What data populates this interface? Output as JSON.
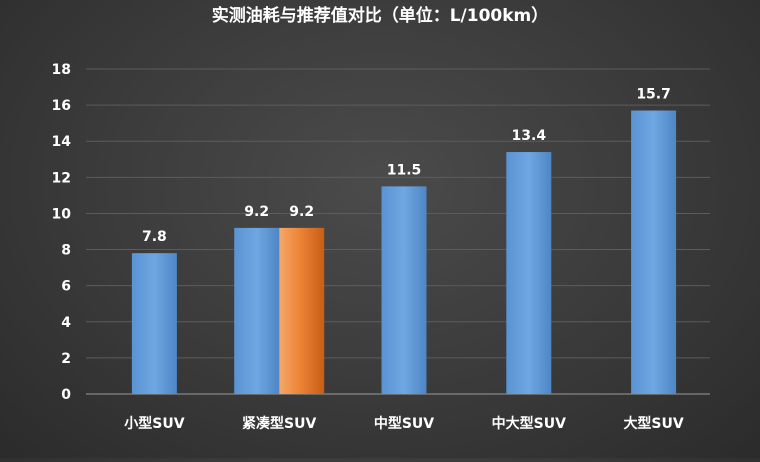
{
  "chart_data": {
    "type": "bar",
    "title": "实测油耗与推荐值对比（单位：L/100km）",
    "xlabel": "",
    "ylabel": "",
    "ylim": [
      0,
      18
    ],
    "yticks": [
      0,
      2,
      4,
      6,
      8,
      10,
      12,
      14,
      16,
      18
    ],
    "grid": true,
    "categories": [
      "小型SUV",
      "紧凑型SUV",
      "中型SUV",
      "中大型SUV",
      "大型SUV"
    ],
    "series": [
      {
        "values": [
          7.8,
          9.2,
          11.5,
          13.4,
          15.7
        ],
        "color": "#5b9bd5"
      },
      {
        "values": [
          null,
          9.2,
          null,
          null,
          null
        ],
        "color": "#ed7d31"
      }
    ],
    "data_labels": true
  }
}
